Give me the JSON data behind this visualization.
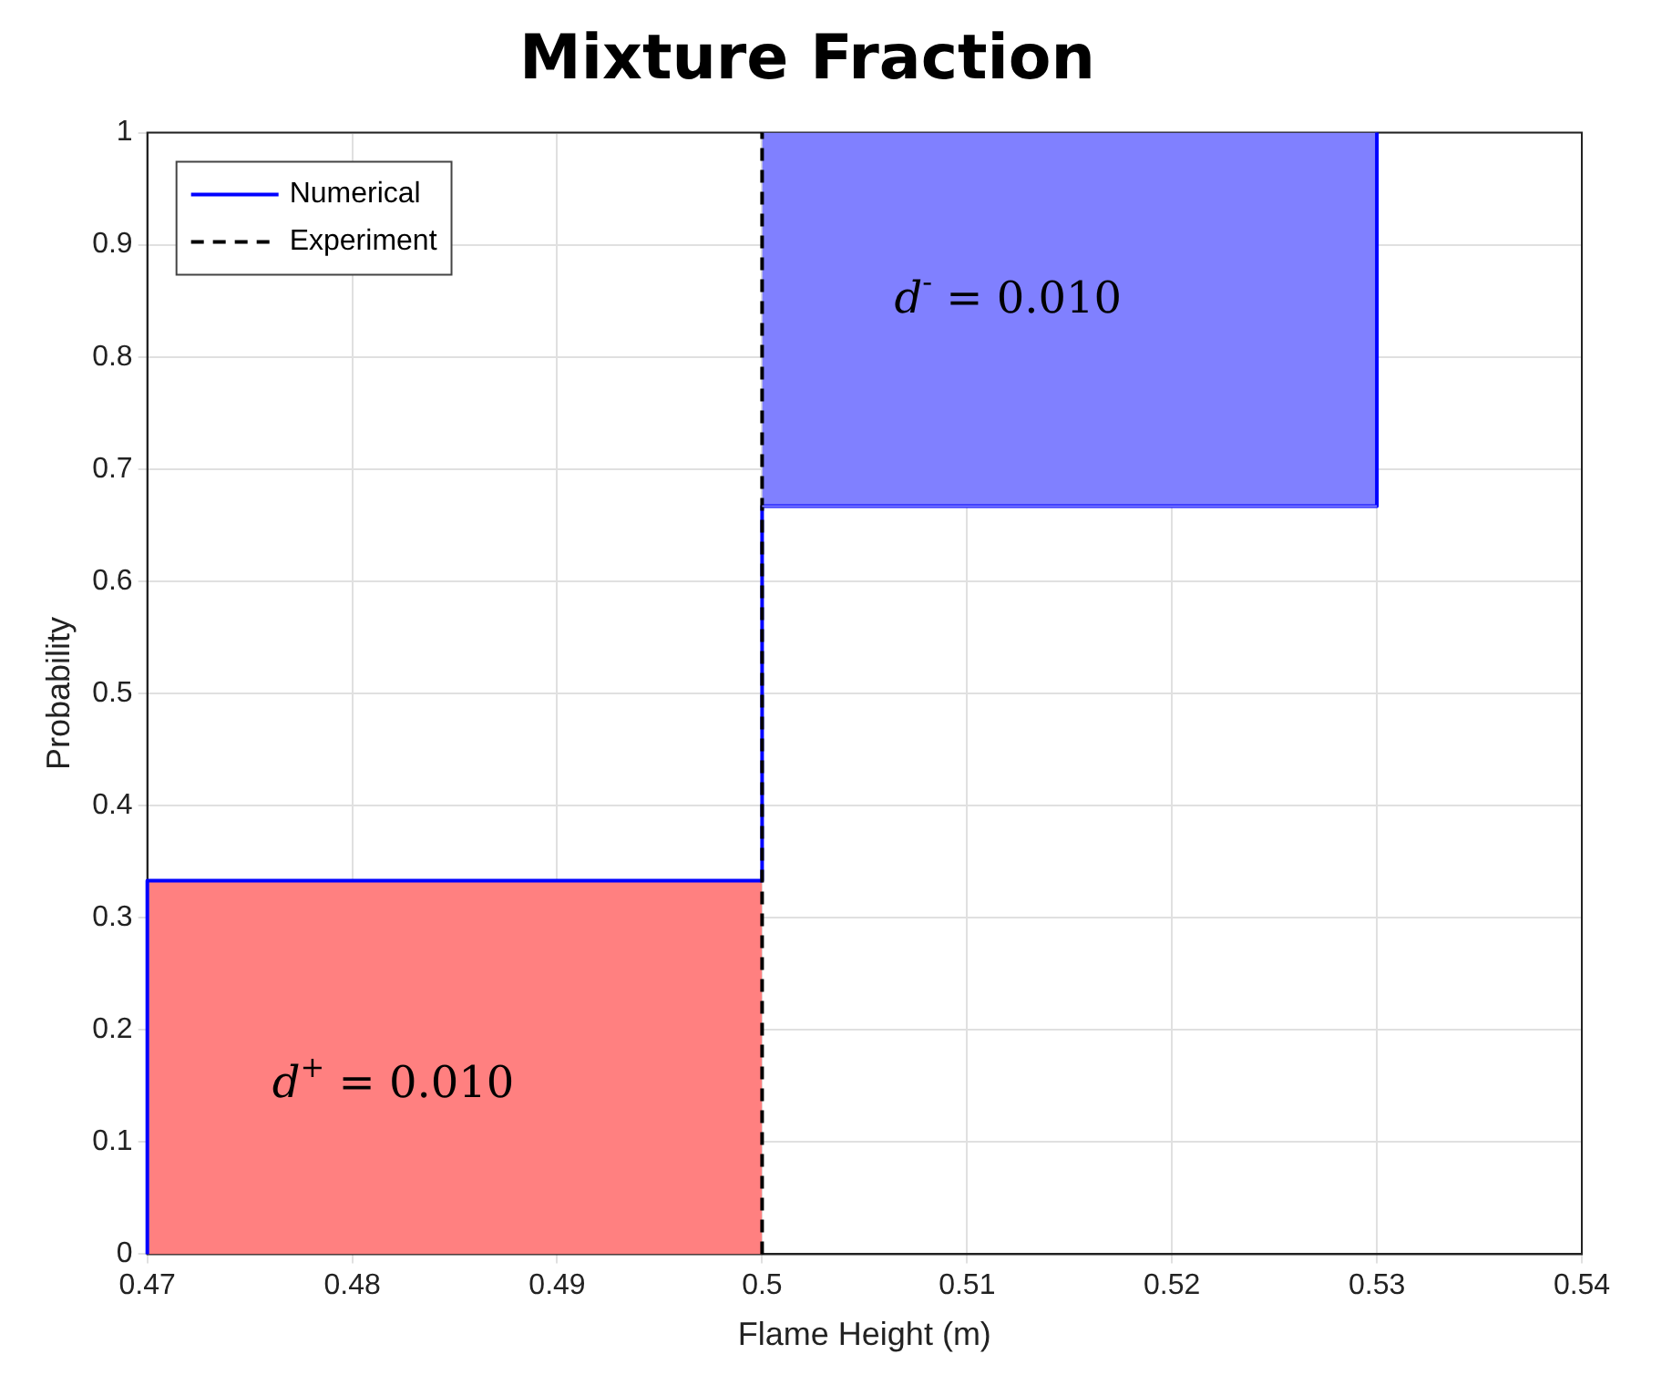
{
  "chart_data": {
    "type": "line",
    "title": "Mixture Fraction",
    "xlabel": "Flame Height (m)",
    "ylabel": "Probability",
    "series": [
      {
        "type": "area",
        "color": "#ff8080",
        "x": [
          0.47,
          0.5
        ],
        "values": [
          0.333,
          0.333
        ]
      },
      {
        "type": "line",
        "color": "#8080ff",
        "x": [
          0.5,
          0.53
        ],
        "values": [
          0.667,
          0.667
        ],
        "lower": [
          0.667,
          0.667
        ],
        "upper": [
          1,
          1
        ]
      },
      {
        "name": "Numerical",
        "type": "line",
        "color": "#0000ff",
        "line_style": "solid",
        "x": [
          0.47,
          0.47,
          0.5,
          0.5,
          0.53,
          0.53
        ],
        "values": [
          0,
          0.333,
          0.333,
          0.667,
          0.667,
          1
        ]
      },
      {
        "name": "Experiment",
        "type": "line",
        "color": "#000000",
        "line_style": "dashed",
        "x": [
          0.5,
          0.5
        ],
        "values": [
          0,
          1
        ]
      }
    ],
    "annotations": [
      "d$^{+}$ = 0.010",
      "d$^{-}$ = 0.010"
    ],
    "xlim": [
      0.47,
      0.54
    ],
    "xticks": [
      0.47,
      0.48,
      0.49,
      0.5,
      0.51,
      0.52,
      0.53,
      0.54
    ],
    "ylim": [
      0,
      1
    ],
    "yticks": [
      0,
      0.1,
      0.2,
      0.3,
      0.4,
      0.5,
      0.6,
      0.7,
      0.8,
      0.9,
      1
    ],
    "grid": true,
    "legend": "top left",
    "marker": "none"
  }
}
